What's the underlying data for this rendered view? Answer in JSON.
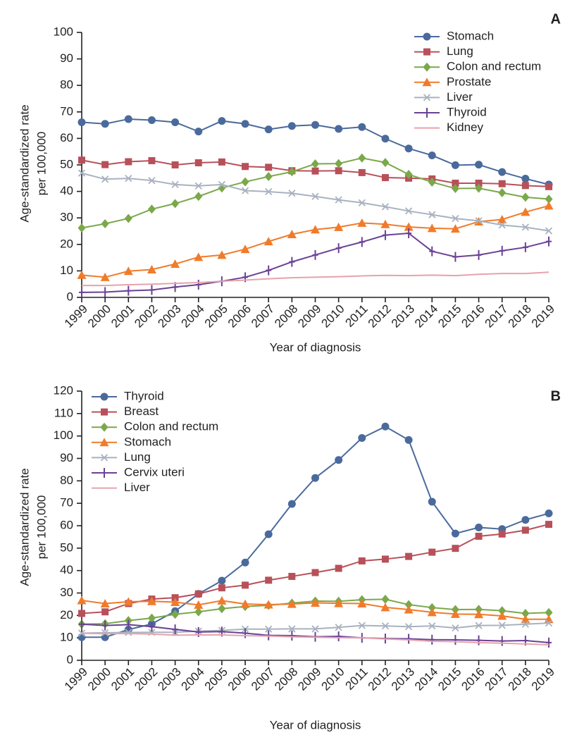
{
  "chart_data": [
    {
      "type": "line",
      "panel_label": "A",
      "x_label": "Year of diagnosis",
      "y_label": [
        "Age-standardized rate",
        "per 100,000"
      ],
      "categories": [
        "1999",
        "2000",
        "2001",
        "2002",
        "2003",
        "2004",
        "2005",
        "2006",
        "2007",
        "2008",
        "2009",
        "2010",
        "2011",
        "2012",
        "2013",
        "2014",
        "2015",
        "2016",
        "2017",
        "2018",
        "2019"
      ],
      "ylim": [
        0,
        100
      ],
      "yticks": [
        0,
        10,
        20,
        30,
        40,
        50,
        60,
        70,
        80,
        90,
        100
      ],
      "legend": "upper right",
      "series": [
        {
          "name": "Stomach",
          "color": "#4a6a9c",
          "marker": "circle",
          "values": [
            66.1,
            65.5,
            67.3,
            66.9,
            66.1,
            62.6,
            66.6,
            65.5,
            63.4,
            64.7,
            65.1,
            63.6,
            64.3,
            59.9,
            56.2,
            53.6,
            49.9,
            50.1,
            47.3,
            44.8,
            42.6
          ]
        },
        {
          "name": "Lung",
          "color": "#b8505a",
          "marker": "square",
          "values": [
            51.8,
            50.1,
            51.2,
            51.6,
            50.0,
            50.8,
            51.1,
            49.4,
            49.1,
            47.8,
            47.7,
            47.8,
            47.1,
            45.2,
            45.0,
            44.7,
            43.1,
            43.1,
            42.9,
            42.2,
            41.8
          ]
        },
        {
          "name": "Colon and rectum",
          "color": "#7aa84a",
          "marker": "diamond",
          "values": [
            26.2,
            27.8,
            29.8,
            33.3,
            35.4,
            38.1,
            41.3,
            43.6,
            45.6,
            47.4,
            50.4,
            50.5,
            52.6,
            50.9,
            46.4,
            43.5,
            41.1,
            41.2,
            39.5,
            37.8,
            37.1
          ]
        },
        {
          "name": "Prostate",
          "color": "#f07b2a",
          "marker": "triangle",
          "values": [
            8.4,
            7.6,
            9.9,
            10.5,
            12.6,
            15.2,
            16.0,
            18.2,
            21.1,
            23.8,
            25.6,
            26.5,
            28.1,
            27.6,
            26.6,
            26.1,
            25.9,
            28.6,
            29.4,
            32.2,
            34.6
          ]
        },
        {
          "name": "Liver",
          "color": "#a8b2c0",
          "marker": "x",
          "values": [
            46.9,
            44.6,
            44.9,
            44.1,
            42.6,
            42.1,
            42.6,
            40.3,
            39.9,
            39.3,
            38.1,
            36.8,
            35.7,
            34.2,
            32.6,
            31.2,
            29.8,
            28.9,
            27.3,
            26.5,
            25.1
          ]
        },
        {
          "name": "Thyroid",
          "color": "#6a4194",
          "marker": "plus",
          "values": [
            1.9,
            2.0,
            2.5,
            2.8,
            3.9,
            4.8,
            6.1,
            7.6,
            10.2,
            13.4,
            16.0,
            18.6,
            20.9,
            23.5,
            24.2,
            17.4,
            15.3,
            16.0,
            17.6,
            18.9,
            21.1
          ]
        },
        {
          "name": "Kidney",
          "color": "#e6a3ab",
          "marker": "none",
          "values": [
            4.5,
            4.5,
            4.8,
            5.0,
            5.3,
            5.6,
            6.1,
            6.5,
            7.0,
            7.4,
            7.6,
            7.8,
            8.1,
            8.3,
            8.2,
            8.4,
            8.2,
            8.7,
            9.0,
            9.0,
            9.5
          ]
        }
      ]
    },
    {
      "type": "line",
      "panel_label": "B",
      "x_label": "Year of diagnosis",
      "y_label": [
        "Age-standardized rate",
        "per 100,000"
      ],
      "categories": [
        "1999",
        "2000",
        "2001",
        "2002",
        "2003",
        "2004",
        "2005",
        "2006",
        "2007",
        "2008",
        "2009",
        "2010",
        "2011",
        "2012",
        "2013",
        "2014",
        "2015",
        "2016",
        "2017",
        "2018",
        "2019"
      ],
      "ylim": [
        0,
        120
      ],
      "yticks": [
        0,
        10,
        20,
        30,
        40,
        50,
        60,
        70,
        80,
        90,
        100,
        110,
        120
      ],
      "legend": "upper left",
      "series": [
        {
          "name": "Thyroid",
          "color": "#4a6a9c",
          "marker": "circle",
          "values": [
            10.3,
            10.3,
            13.7,
            16.2,
            21.9,
            29.6,
            35.5,
            43.6,
            56.2,
            69.7,
            81.3,
            89.3,
            99.1,
            104.2,
            98.2,
            70.7,
            56.5,
            59.2,
            58.5,
            62.6,
            65.5
          ]
        },
        {
          "name": "Breast",
          "color": "#b8505a",
          "marker": "square",
          "values": [
            20.9,
            21.6,
            25.3,
            27.3,
            27.9,
            29.6,
            32.3,
            33.5,
            35.7,
            37.4,
            39.1,
            41.0,
            44.3,
            45.1,
            46.3,
            48.2,
            49.9,
            55.3,
            56.3,
            58.0,
            60.6
          ]
        },
        {
          "name": "Colon and rectum",
          "color": "#7aa84a",
          "marker": "diamond",
          "values": [
            16.1,
            16.3,
            17.7,
            18.8,
            20.5,
            21.6,
            23.0,
            24.0,
            24.5,
            25.5,
            26.4,
            26.3,
            27.0,
            27.2,
            24.8,
            23.5,
            22.6,
            22.7,
            22.1,
            20.9,
            21.3
          ]
        },
        {
          "name": "Stomach",
          "color": "#f07b2a",
          "marker": "triangle",
          "values": [
            26.7,
            25.3,
            26.1,
            26.3,
            25.9,
            24.7,
            26.6,
            25.1,
            24.8,
            25.1,
            25.6,
            25.4,
            25.3,
            23.6,
            22.6,
            21.4,
            20.6,
            20.5,
            19.8,
            18.3,
            18.3
          ]
        },
        {
          "name": "Lung",
          "color": "#a8b2c0",
          "marker": "x",
          "values": [
            12.1,
            12.3,
            12.4,
            12.5,
            12.5,
            13.0,
            13.3,
            13.9,
            13.9,
            14.0,
            14.0,
            14.7,
            15.5,
            15.3,
            15.0,
            15.3,
            14.4,
            15.5,
            15.6,
            16.1,
            16.6
          ]
        },
        {
          "name": "Cervix uteri",
          "color": "#6a4194",
          "marker": "plus",
          "values": [
            16.1,
            15.5,
            15.9,
            15.0,
            13.8,
            12.6,
            12.8,
            12.1,
            11.1,
            11.0,
            10.5,
            10.7,
            10.0,
            9.7,
            9.6,
            9.2,
            9.1,
            8.9,
            8.6,
            8.8,
            7.9
          ]
        },
        {
          "name": "Liver",
          "color": "#e6a3ab",
          "marker": "none",
          "values": [
            12.0,
            11.9,
            11.9,
            11.7,
            11.2,
            11.3,
            11.3,
            11.0,
            10.8,
            10.5,
            10.3,
            10.1,
            10.0,
            9.5,
            9.1,
            8.5,
            8.3,
            7.9,
            7.6,
            7.3,
            6.9
          ]
        }
      ]
    }
  ]
}
